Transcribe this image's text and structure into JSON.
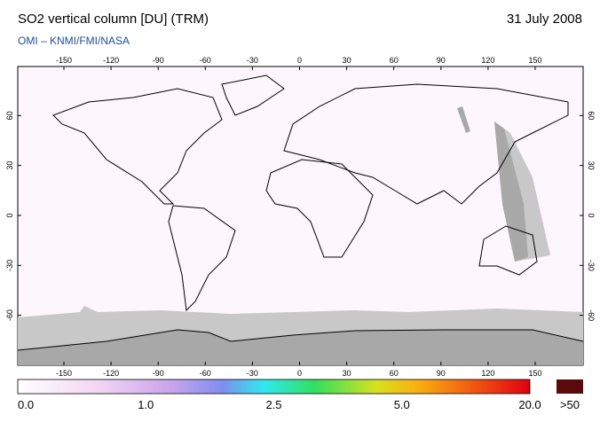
{
  "header": {
    "title": "SO2 vertical column [DU] (TRM)",
    "date": "31 July 2008",
    "subtitle": "OMI  –  KNMI/FMI/NASA"
  },
  "map": {
    "lon_ticks": [
      -150,
      -120,
      -90,
      -60,
      -30,
      0,
      30,
      60,
      90,
      120,
      150
    ],
    "lat_ticks": [
      60,
      30,
      0,
      -30,
      -60
    ]
  },
  "colorbar": {
    "labels": [
      "0.0",
      "1.0",
      "2.5",
      "5.0",
      "20.0"
    ],
    "overflow_label": ">50"
  }
}
